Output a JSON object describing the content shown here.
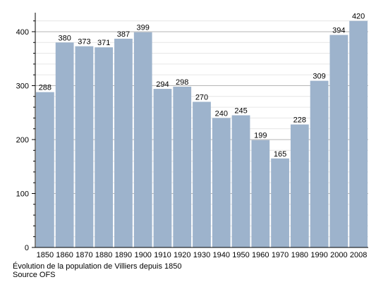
{
  "chart_data": {
    "type": "bar",
    "categories": [
      "1850",
      "1860",
      "1870",
      "1880",
      "1890",
      "1900",
      "1910",
      "1920",
      "1930",
      "1940",
      "1950",
      "1960",
      "1970",
      "1980",
      "1990",
      "2000",
      "2008"
    ],
    "values": [
      288,
      380,
      373,
      371,
      387,
      399,
      294,
      298,
      270,
      240,
      245,
      199,
      165,
      228,
      309,
      394,
      420
    ],
    "ylim": [
      0,
      430
    ],
    "yticks": [
      0,
      100,
      200,
      300,
      400
    ],
    "grid": true,
    "bar_color": "#9db3cc",
    "title": "",
    "xlabel": "",
    "ylabel": ""
  },
  "caption": {
    "line1": "Évolution de la population de Villiers depuis 1850",
    "line2": "Source OFS"
  }
}
